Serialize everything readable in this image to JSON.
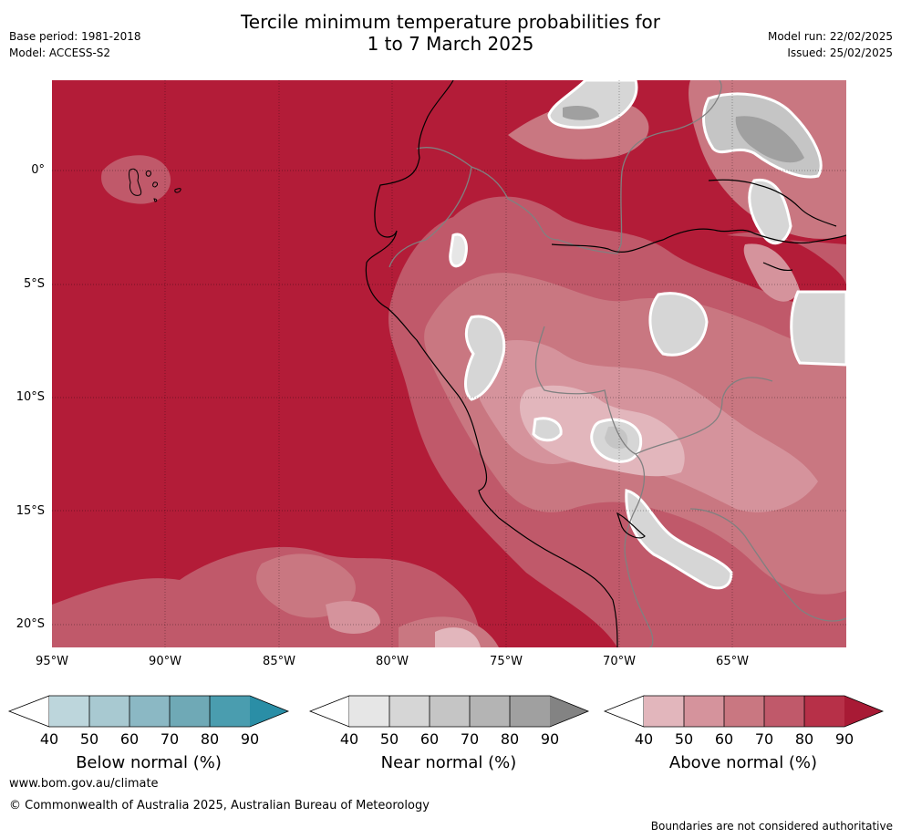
{
  "header": {
    "title_line1": "Tercile minimum temperature probabilities for",
    "title_line2": "1 to 7 March 2025",
    "base_period": "Base period: 1981-2018",
    "model": "Model: ACCESS-S2",
    "model_run": "Model run: 22/02/2025",
    "issued": "Issued: 25/02/2025"
  },
  "map": {
    "lat_labels": [
      "0°",
      "5°S",
      "10°S",
      "15°S",
      "20°S"
    ],
    "lon_labels": [
      "95°W",
      "90°W",
      "85°W",
      "80°W",
      "75°W",
      "70°W",
      "65°W"
    ],
    "background_color": "#b31c38"
  },
  "colorbars": [
    {
      "title": "Below normal (%)",
      "ticks": [
        "40",
        "50",
        "60",
        "70",
        "80",
        "90"
      ],
      "colors": [
        "#bdd6dc",
        "#a8c9d1",
        "#8bb8c4",
        "#6fa9b6",
        "#4a9daf",
        "#2a8ea6"
      ]
    },
    {
      "title": "Near normal (%)",
      "ticks": [
        "40",
        "50",
        "60",
        "70",
        "80",
        "90"
      ],
      "colors": [
        "#e6e6e6",
        "#d6d6d6",
        "#c5c5c5",
        "#b4b4b4",
        "#a0a0a0",
        "#838383"
      ]
    },
    {
      "title": "Above normal (%)",
      "ticks": [
        "40",
        "50",
        "60",
        "70",
        "80",
        "90"
      ],
      "colors": [
        "#e2b6bc",
        "#d5939c",
        "#c97781",
        "#c0596a",
        "#b73048",
        "#a81a35"
      ]
    }
  ],
  "footer": {
    "website": "www.bom.gov.au/climate",
    "copyright": "© Commonwealth of Australia 2025, Australian Bureau of Meteorology",
    "disclaimer": "Boundaries are not considered authoritative"
  }
}
